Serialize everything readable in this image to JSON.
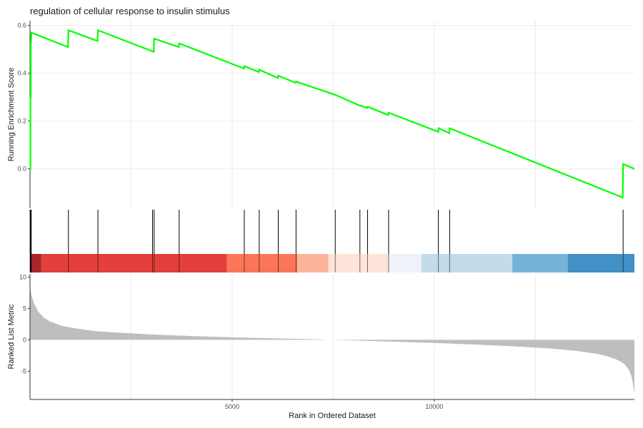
{
  "chart_data": {
    "type": "line",
    "title": "regulation of cellular response to insulin stimulus",
    "xlabel": "Rank in Ordered Dataset",
    "x_ticks": [
      5000,
      10000
    ],
    "xlim": [
      0,
      14950
    ],
    "colors": {
      "running_score": "#00ff00",
      "hit_line": "#000000",
      "metric_fill": "#bebebe",
      "grid": "#ebebeb",
      "axis": "#333333"
    },
    "panels": {
      "running_score": {
        "ylabel": "Running Enrichment Score",
        "y_ticks": [
          0.0,
          0.2,
          0.4,
          0.6
        ],
        "y_tick_labels": [
          "0.0",
          "0.2",
          "0.4",
          "0.6"
        ],
        "ylim": [
          -0.165,
          0.62
        ],
        "series": [
          {
            "x": [
              0,
              10,
              10,
              20,
              20,
              35,
              35,
              940,
              950,
              1670,
              1680,
              3060,
              3070,
              3680,
              3690,
              5290,
              5300,
              5660,
              5670,
              6130,
              6140,
              6570,
              6580,
              7550,
              8150,
              8160,
              8340,
              8350,
              8860,
              8870,
              10100,
              10110,
              10370,
              10380,
              14660,
              14670,
              14950
            ],
            "y": [
              0.0,
              0.0,
              0.3,
              0.3,
              0.52,
              0.57,
              0.57,
              0.51,
              0.58,
              0.535,
              0.58,
              0.49,
              0.545,
              0.51,
              0.525,
              0.42,
              0.43,
              0.405,
              0.415,
              0.38,
              0.39,
              0.36,
              0.365,
              0.31,
              0.265,
              0.265,
              0.255,
              0.26,
              0.225,
              0.235,
              0.155,
              0.17,
              0.15,
              0.17,
              -0.12,
              0.02,
              0.0
            ]
          }
        ]
      },
      "gene_hits": {
        "positions": [
          5,
          10,
          15,
          20,
          25,
          30,
          950,
          1680,
          3030,
          3070,
          3690,
          5300,
          5670,
          6140,
          6580,
          7550,
          8160,
          8350,
          8870,
          10100,
          10380,
          14670
        ]
      },
      "color_bar": {
        "segments": [
          {
            "start": 0,
            "end": 280,
            "color": "#a7262a"
          },
          {
            "start": 280,
            "end": 4870,
            "color": "#e3403b"
          },
          {
            "start": 4870,
            "end": 6610,
            "color": "#fb7658"
          },
          {
            "start": 6610,
            "end": 7380,
            "color": "#fcb49a"
          },
          {
            "start": 7380,
            "end": 8860,
            "color": "#fee4d8"
          },
          {
            "start": 8860,
            "end": 9680,
            "color": "#eef3fb"
          },
          {
            "start": 9680,
            "end": 11930,
            "color": "#c3dbea"
          },
          {
            "start": 11930,
            "end": 13300,
            "color": "#77b3d9"
          },
          {
            "start": 13300,
            "end": 14950,
            "color": "#4390c7"
          }
        ]
      },
      "ranked_metric": {
        "ylabel": "Ranked List Metric",
        "y_ticks": [
          -5,
          0,
          5,
          10
        ],
        "y_tick_labels": [
          "-5",
          "0",
          "5",
          "10"
        ],
        "ylim": [
          -9.5,
          10.5
        ],
        "profile": {
          "x": [
            0,
            40,
            100,
            200,
            350,
            500,
            800,
            1200,
            1600,
            2000,
            3000,
            4000,
            5000,
            6000,
            7000,
            7400,
            8000,
            9000,
            10000,
            11000,
            12000,
            12800,
            13500,
            14000,
            14300,
            14500,
            14650,
            14750,
            14820,
            14870,
            14910,
            14950
          ],
          "y": [
            8.4,
            7.0,
            5.8,
            4.5,
            3.5,
            2.9,
            2.2,
            1.75,
            1.4,
            1.2,
            0.85,
            0.6,
            0.4,
            0.25,
            0.1,
            0.0,
            -0.1,
            -0.3,
            -0.5,
            -0.75,
            -1.05,
            -1.35,
            -1.75,
            -2.2,
            -2.65,
            -3.1,
            -3.6,
            -4.2,
            -4.9,
            -5.7,
            -6.8,
            -8.6
          ]
        }
      }
    }
  }
}
